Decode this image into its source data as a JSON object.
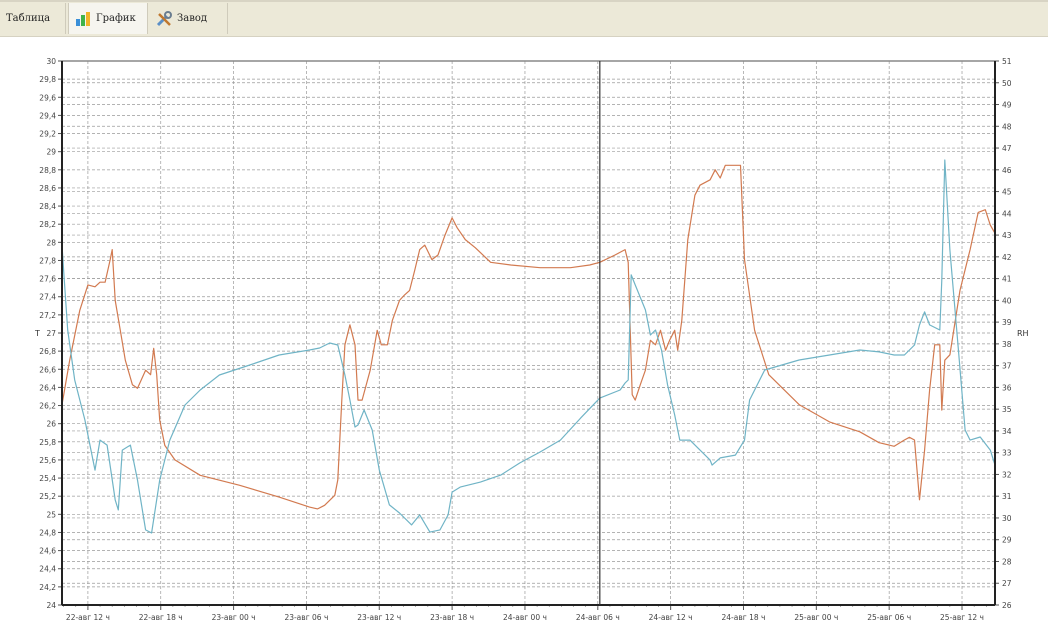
{
  "tabs": [
    {
      "label": "Таблица",
      "icon": "table-icon",
      "active": false
    },
    {
      "label": "График",
      "icon": "chart-icon",
      "active": true
    },
    {
      "label": "Завод",
      "icon": "tools-icon",
      "active": false
    }
  ],
  "chart_data": {
    "type": "line",
    "title": "",
    "xlabel": "",
    "ylabel": "T",
    "y2label": "RH",
    "xlim": [
      "22 09:52",
      "25 14:43"
    ],
    "ylim": [
      24,
      30
    ],
    "y2lim": [
      26,
      51
    ],
    "grid": true,
    "cursor_time": "24 06:10",
    "x_ticks": [
      {
        "t": "22 12:00",
        "label": "22-авг 12 ч"
      },
      {
        "t": "22 18:00",
        "label": "22-авг 18 ч"
      },
      {
        "t": "23 00:00",
        "label": "23-авг 00 ч"
      },
      {
        "t": "23 06:00",
        "label": "23-авг 06 ч"
      },
      {
        "t": "23 12:00",
        "label": "23-авг 12 ч"
      },
      {
        "t": "23 18:00",
        "label": "23-авг 18 ч"
      },
      {
        "t": "24 00:00",
        "label": "24-авг 00 ч"
      },
      {
        "t": "24 06:00",
        "label": "24-авг 06 ч"
      },
      {
        "t": "24 12:00",
        "label": "24-авг 12 ч"
      },
      {
        "t": "24 18:00",
        "label": "24-авг 18 ч"
      },
      {
        "t": "25 00:00",
        "label": "25-авг 00 ч"
      },
      {
        "t": "25 06:00",
        "label": "25-авг 06 ч"
      },
      {
        "t": "25 12:00",
        "label": "25-авг 12 ч"
      }
    ],
    "y_ticks": [
      "24",
      "24,2",
      "24,4",
      "24,6",
      "24,8",
      "25",
      "25,2",
      "25,4",
      "25,6",
      "25,8",
      "26",
      "26,2",
      "26,4",
      "26,6",
      "26,8",
      "27",
      "27,2",
      "27,4",
      "27,6",
      "27,8",
      "28",
      "28,2",
      "28,4",
      "28,6",
      "28,8",
      "29",
      "29,2",
      "29,4",
      "29,6",
      "29,8",
      "30"
    ],
    "y2_ticks": [
      "26",
      "27",
      "28",
      "29",
      "30",
      "31",
      "32",
      "33",
      "34",
      "35",
      "36",
      "37",
      "38",
      "39",
      "40",
      "41",
      "42",
      "43",
      "44",
      "45",
      "46",
      "47",
      "48",
      "49",
      "50",
      "51"
    ],
    "series": [
      {
        "axis": "left",
        "color": "#d27a50",
        "points": [
          [
            "22 09:52",
            26.21
          ],
          [
            "22 10:30",
            26.7
          ],
          [
            "22 11:20",
            27.25
          ],
          [
            "22 12:00",
            27.53
          ],
          [
            "22 12:35",
            27.51
          ],
          [
            "22 13:00",
            27.56
          ],
          [
            "22 13:25",
            27.56
          ],
          [
            "22 13:50",
            27.81
          ],
          [
            "22 14:00",
            27.92
          ],
          [
            "22 14:15",
            27.36
          ],
          [
            "22 14:40",
            27.03
          ],
          [
            "22 15:05",
            26.7
          ],
          [
            "22 15:40",
            26.43
          ],
          [
            "22 16:05",
            26.39
          ],
          [
            "22 16:45",
            26.59
          ],
          [
            "22 17:10",
            26.54
          ],
          [
            "22 17:25",
            26.83
          ],
          [
            "22 17:40",
            26.54
          ],
          [
            "22 17:55",
            26.04
          ],
          [
            "22 18:20",
            25.76
          ],
          [
            "22 19:10",
            25.6
          ],
          [
            "22 21:15",
            25.43
          ],
          [
            "23 00:30",
            25.32
          ],
          [
            "23 03:45",
            25.19
          ],
          [
            "23 06:15",
            25.08
          ],
          [
            "23 06:55",
            25.06
          ],
          [
            "23 07:30",
            25.1
          ],
          [
            "23 08:20",
            25.21
          ],
          [
            "23 08:35",
            25.38
          ],
          [
            "23 08:55",
            26.26
          ],
          [
            "23 09:10",
            26.87
          ],
          [
            "23 09:35",
            27.09
          ],
          [
            "23 10:00",
            26.87
          ],
          [
            "23 10:15",
            26.26
          ],
          [
            "23 10:35",
            26.26
          ],
          [
            "23 11:15",
            26.59
          ],
          [
            "23 11:50",
            27.03
          ],
          [
            "23 12:10",
            26.87
          ],
          [
            "23 12:40",
            26.87
          ],
          [
            "23 13:05",
            27.14
          ],
          [
            "23 13:40",
            27.36
          ],
          [
            "23 14:05",
            27.42
          ],
          [
            "23 14:30",
            27.47
          ],
          [
            "23 14:55",
            27.69
          ],
          [
            "23 15:20",
            27.92
          ],
          [
            "23 15:45",
            27.97
          ],
          [
            "23 16:20",
            27.81
          ],
          [
            "23 16:50",
            27.86
          ],
          [
            "23 17:25",
            28.08
          ],
          [
            "23 18:00",
            28.27
          ],
          [
            "23 18:25",
            28.16
          ],
          [
            "23 19:05",
            28.03
          ],
          [
            "23 19:55",
            27.94
          ],
          [
            "23 21:10",
            27.78
          ],
          [
            "23 22:50",
            27.75
          ],
          [
            "24 01:15",
            27.72
          ],
          [
            "24 03:45",
            27.72
          ],
          [
            "24 05:20",
            27.75
          ],
          [
            "24 06:10",
            27.78
          ],
          [
            "24 07:25",
            27.86
          ],
          [
            "24 08:15",
            27.92
          ],
          [
            "24 08:30",
            27.78
          ],
          [
            "24 08:50",
            26.32
          ],
          [
            "24 09:05",
            26.26
          ],
          [
            "24 09:30",
            26.43
          ],
          [
            "24 09:55",
            26.59
          ],
          [
            "24 10:20",
            26.92
          ],
          [
            "24 10:45",
            26.87
          ],
          [
            "24 11:10",
            27.03
          ],
          [
            "24 11:35",
            26.81
          ],
          [
            "24 11:55",
            26.92
          ],
          [
            "24 12:20",
            27.03
          ],
          [
            "24 12:35",
            26.81
          ],
          [
            "24 12:55",
            27.14
          ],
          [
            "24 13:25",
            28.03
          ],
          [
            "24 14:00",
            28.52
          ],
          [
            "24 14:25",
            28.63
          ],
          [
            "24 15:15",
            28.69
          ],
          [
            "24 15:40",
            28.8
          ],
          [
            "24 16:05",
            28.71
          ],
          [
            "24 16:30",
            28.85
          ],
          [
            "24 17:20",
            28.85
          ],
          [
            "24 17:45",
            28.85
          ],
          [
            "24 18:05",
            27.81
          ],
          [
            "24 18:55",
            27.03
          ],
          [
            "24 20:05",
            26.54
          ],
          [
            "24 22:35",
            26.21
          ],
          [
            "25 01:05",
            26.02
          ],
          [
            "25 03:35",
            25.91
          ],
          [
            "25 05:10",
            25.79
          ],
          [
            "25 06:25",
            25.75
          ],
          [
            "25 07:15",
            25.82
          ],
          [
            "25 07:40",
            25.85
          ],
          [
            "25 08:05",
            25.82
          ],
          [
            "25 08:30",
            25.16
          ],
          [
            "25 08:55",
            25.71
          ],
          [
            "25 09:20",
            26.37
          ],
          [
            "25 09:45",
            26.87
          ],
          [
            "25 10:10",
            26.87
          ],
          [
            "25 10:20",
            26.15
          ],
          [
            "25 10:35",
            26.7
          ],
          [
            "25 11:00",
            26.76
          ],
          [
            "25 11:50",
            27.47
          ],
          [
            "25 12:40",
            27.92
          ],
          [
            "25 13:20",
            28.33
          ],
          [
            "25 13:55",
            28.36
          ],
          [
            "25 14:20",
            28.19
          ],
          [
            "25 14:43",
            28.1
          ]
        ]
      },
      {
        "axis": "right",
        "color": "#70b4c6",
        "points": [
          [
            "22 09:52",
            42.54
          ],
          [
            "22 10:00",
            41.4
          ],
          [
            "22 10:20",
            38.64
          ],
          [
            "22 10:55",
            36.34
          ],
          [
            "22 11:45",
            34.5
          ],
          [
            "22 12:35",
            32.2
          ],
          [
            "22 13:00",
            33.58
          ],
          [
            "22 13:35",
            33.35
          ],
          [
            "22 14:15",
            30.83
          ],
          [
            "22 14:30",
            30.37
          ],
          [
            "22 14:50",
            33.12
          ],
          [
            "22 15:30",
            33.35
          ],
          [
            "22 16:05",
            31.74
          ],
          [
            "22 16:45",
            29.45
          ],
          [
            "22 17:15",
            29.31
          ],
          [
            "22 17:55",
            31.74
          ],
          [
            "22 18:45",
            33.58
          ],
          [
            "22 20:00",
            35.19
          ],
          [
            "22 21:15",
            35.88
          ],
          [
            "22 22:50",
            36.57
          ],
          [
            "23 01:20",
            37.03
          ],
          [
            "23 03:45",
            37.49
          ],
          [
            "23 06:15",
            37.72
          ],
          [
            "23 07:05",
            37.81
          ],
          [
            "23 07:55",
            38.04
          ],
          [
            "23 08:35",
            37.95
          ],
          [
            "23 09:10",
            36.57
          ],
          [
            "23 09:35",
            35.42
          ],
          [
            "23 10:00",
            34.18
          ],
          [
            "23 10:15",
            34.27
          ],
          [
            "23 10:45",
            34.96
          ],
          [
            "23 11:25",
            34.04
          ],
          [
            "23 12:00",
            32.2
          ],
          [
            "23 12:50",
            30.6
          ],
          [
            "23 13:40",
            30.23
          ],
          [
            "23 14:40",
            29.68
          ],
          [
            "23 15:20",
            30.14
          ],
          [
            "23 16:10",
            29.35
          ],
          [
            "23 17:00",
            29.45
          ],
          [
            "23 17:40",
            30.14
          ],
          [
            "23 18:00",
            31.19
          ],
          [
            "23 18:40",
            31.42
          ],
          [
            "23 20:20",
            31.65
          ],
          [
            "23 22:00",
            31.97
          ],
          [
            "23 23:35",
            32.53
          ],
          [
            "24 01:15",
            33.03
          ],
          [
            "24 02:55",
            33.58
          ],
          [
            "24 04:35",
            34.59
          ],
          [
            "24 06:10",
            35.51
          ],
          [
            "24 07:50",
            35.88
          ],
          [
            "24 08:15",
            36.2
          ],
          [
            "24 08:30",
            36.34
          ],
          [
            "24 08:45",
            41.17
          ],
          [
            "24 09:05",
            40.71
          ],
          [
            "24 09:55",
            39.56
          ],
          [
            "24 10:20",
            38.41
          ],
          [
            "24 10:45",
            38.64
          ],
          [
            "24 11:15",
            37.72
          ],
          [
            "24 11:45",
            36.11
          ],
          [
            "24 12:20",
            34.73
          ],
          [
            "24 12:45",
            33.58
          ],
          [
            "24 13:35",
            33.58
          ],
          [
            "24 14:25",
            33.12
          ],
          [
            "24 15:15",
            32.66
          ],
          [
            "24 15:25",
            32.43
          ],
          [
            "24 16:05",
            32.76
          ],
          [
            "24 17:20",
            32.89
          ],
          [
            "24 18:05",
            33.58
          ],
          [
            "24 18:30",
            35.42
          ],
          [
            "24 19:45",
            36.8
          ],
          [
            "24 22:35",
            37.26
          ],
          [
            "25 01:05",
            37.49
          ],
          [
            "25 03:35",
            37.72
          ],
          [
            "25 05:10",
            37.63
          ],
          [
            "25 06:25",
            37.49
          ],
          [
            "25 07:15",
            37.49
          ],
          [
            "25 08:05",
            37.95
          ],
          [
            "25 08:30",
            38.87
          ],
          [
            "25 08:55",
            39.47
          ],
          [
            "25 09:20",
            38.87
          ],
          [
            "25 10:10",
            38.64
          ],
          [
            "25 10:20",
            40.94
          ],
          [
            "25 10:35",
            46.45
          ],
          [
            "25 11:00",
            42.31
          ],
          [
            "25 11:40",
            37.95
          ],
          [
            "25 12:15",
            34.04
          ],
          [
            "25 12:40",
            33.58
          ],
          [
            "25 13:30",
            33.72
          ],
          [
            "25 14:20",
            33.12
          ],
          [
            "25 14:43",
            32.43
          ]
        ]
      }
    ]
  }
}
